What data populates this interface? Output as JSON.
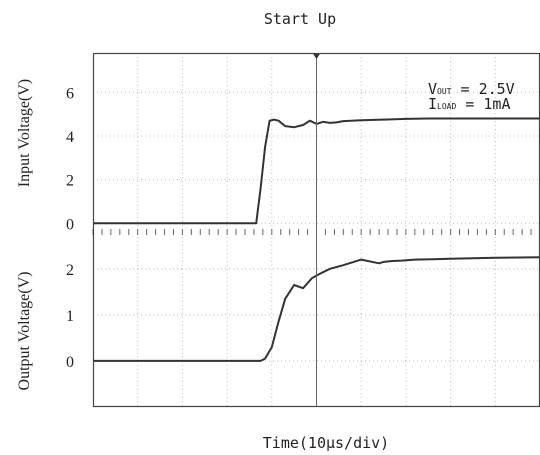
{
  "chart_data": {
    "type": "line",
    "title": "Start Up",
    "xlabel": "Time(10μs/div)",
    "x_unit_per_div": 10,
    "x_divisions": 10,
    "colors": {
      "trace": "#333333",
      "grid": "#bbbbbb",
      "frame": "#444444"
    },
    "annotation": {
      "line1": {
        "main": "V",
        "sub": "OUT",
        "rest": " = 2.5V"
      },
      "line2": {
        "main": "I",
        "sub": "LOAD",
        "rest": " = 1mA"
      }
    },
    "panels": [
      {
        "ylabel": "Input Voltage(V)",
        "yticks": [
          "0",
          "2",
          "4",
          "6"
        ],
        "ylim": [
          -0.4,
          7.8
        ],
        "series": {
          "x": [
            0,
            36.5,
            37.5,
            38.5,
            39.5,
            40.5,
            41.5,
            43,
            45,
            47,
            48.5,
            50,
            51.5,
            53,
            54.5,
            56,
            60,
            65,
            70,
            75,
            80,
            85,
            90,
            100
          ],
          "y": [
            0,
            0,
            1.6,
            3.5,
            4.7,
            4.75,
            4.7,
            4.45,
            4.4,
            4.5,
            4.7,
            4.55,
            4.65,
            4.6,
            4.62,
            4.68,
            4.72,
            4.75,
            4.78,
            4.8,
            4.8,
            4.8,
            4.8,
            4.8
          ]
        }
      },
      {
        "ylabel": "Output Voltage(V)",
        "yticks": [
          "0",
          "1",
          "2"
        ],
        "ylim": [
          -1,
          2.8
        ],
        "series": {
          "x": [
            0,
            37.5,
            38.5,
            40,
            41.5,
            43,
            45,
            47,
            49,
            50.5,
            53,
            56,
            60,
            64,
            65,
            67,
            69,
            72,
            76,
            80,
            85,
            90,
            100
          ],
          "y": [
            0,
            0,
            0.05,
            0.3,
            0.85,
            1.35,
            1.65,
            1.58,
            1.8,
            1.88,
            2.0,
            2.08,
            2.2,
            2.12,
            2.15,
            2.17,
            2.18,
            2.2,
            2.21,
            2.22,
            2.23,
            2.24,
            2.25
          ]
        }
      }
    ]
  }
}
